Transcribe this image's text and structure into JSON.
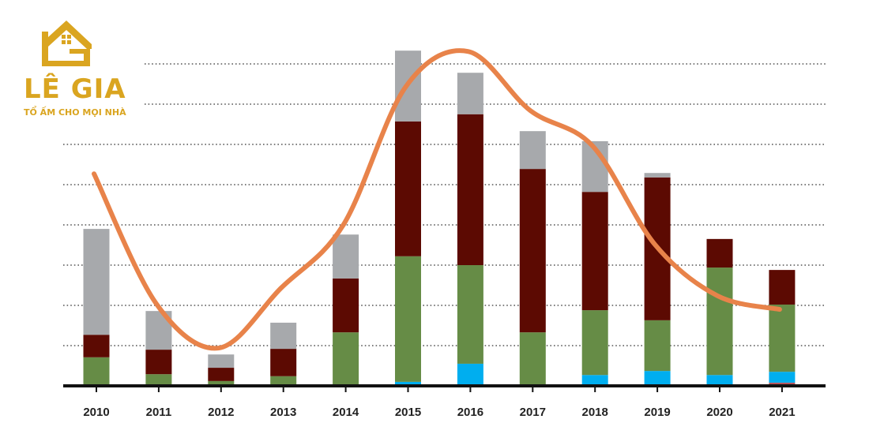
{
  "logo": {
    "name": "LÊ GIA",
    "tagline": "TỔ ẤM CHO MỌI NHÀ",
    "color": "#DAA520"
  },
  "chart_data": {
    "type": "bar",
    "stacked": true,
    "title": "",
    "xlabel": "",
    "ylabel": "",
    "ylim": [
      0,
      8.5
    ],
    "grid": true,
    "gridlines_at": [
      1,
      2,
      3,
      4,
      5,
      6,
      7,
      8
    ],
    "categories": [
      "2010",
      "2011",
      "2012",
      "2013",
      "2014",
      "2015",
      "2016",
      "2017",
      "2018",
      "2019",
      "2020",
      "2021"
    ],
    "series": [
      {
        "color": "#B5545C",
        "values": [
          0,
          0,
          0,
          0,
          0,
          0,
          0,
          0,
          0,
          0,
          0,
          0.08
        ]
      },
      {
        "color": "#00AEEF",
        "values": [
          0,
          0,
          0,
          0,
          0,
          0.1,
          0.55,
          0,
          0.27,
          0.37,
          0.27,
          0.27
        ]
      },
      {
        "color": "#668C46",
        "values": [
          0.71,
          0.29,
          0.12,
          0.24,
          1.33,
          3.12,
          2.45,
          1.33,
          1.61,
          1.26,
          2.67,
          1.67
        ]
      },
      {
        "color": "#5C0A02",
        "values": [
          0.56,
          0.61,
          0.33,
          0.68,
          1.34,
          3.35,
          3.75,
          4.06,
          2.94,
          3.55,
          0.71,
          0.86
        ]
      },
      {
        "color": "#A7A9AC",
        "values": [
          2.63,
          0.96,
          0.33,
          0.65,
          1.09,
          1.76,
          1.03,
          0.94,
          1.26,
          0.11,
          0,
          0
        ]
      }
    ],
    "line": {
      "type": "line",
      "smooth": true,
      "color": "#E8834A",
      "values": [
        5.27,
        2.04,
        0.94,
        2.43,
        4.0,
        7.43,
        8.31,
        6.84,
        5.96,
        3.51,
        2.24,
        1.9
      ]
    }
  }
}
